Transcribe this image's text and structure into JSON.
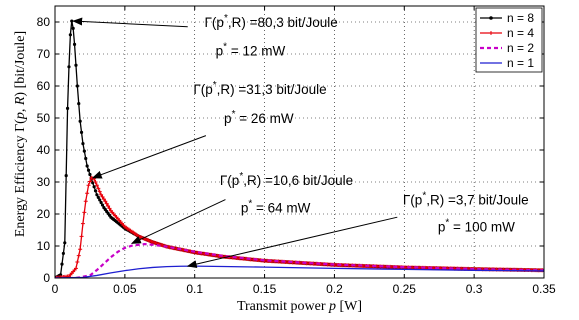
{
  "chart_data": {
    "type": "line",
    "xlabel_parts": [
      "Transmit power ",
      "p",
      " [W]"
    ],
    "ylabel_parts": [
      "Energy Efficiency Γ(",
      "p, R",
      ") [bit/Joule]"
    ],
    "xlim": [
      0,
      0.35
    ],
    "ylim": [
      0,
      85
    ],
    "xticks": [
      0,
      0.05,
      0.1,
      0.15,
      0.2,
      0.25,
      0.3,
      0.35
    ],
    "xtick_labels": [
      "0",
      "0.05",
      "0.1",
      "0.15",
      "0.2",
      "0.25",
      "0.3",
      "0.35"
    ],
    "yticks": [
      0,
      10,
      20,
      30,
      40,
      50,
      60,
      70,
      80
    ],
    "ytick_labels": [
      "0",
      "10",
      "20",
      "30",
      "40",
      "50",
      "60",
      "70",
      "80"
    ],
    "grid": true,
    "legend_position": "top-right",
    "series": [
      {
        "name": "n = 8",
        "color": "#000000",
        "marker": "dot",
        "dash": "solid",
        "x": [
          0,
          0.004,
          0.007,
          0.009,
          0.01,
          0.011,
          0.012,
          0.013,
          0.014,
          0.016,
          0.018,
          0.02,
          0.023,
          0.026,
          0.03,
          0.035,
          0.04,
          0.05,
          0.06,
          0.07,
          0.08,
          0.1,
          0.12,
          0.15,
          0.2,
          0.25,
          0.3,
          0.35
        ],
        "y": [
          0,
          1,
          11,
          53,
          66,
          76,
          80.3,
          78,
          73,
          60,
          49,
          42,
          35,
          31,
          26,
          22,
          19,
          15.5,
          13,
          11.2,
          9.8,
          8,
          6.7,
          5.4,
          4.1,
          3.3,
          2.8,
          2.4
        ]
      },
      {
        "name": "n = 4",
        "color": "#e8000b",
        "marker": "plus",
        "dash": "solid",
        "x": [
          0,
          0.01,
          0.015,
          0.018,
          0.02,
          0.022,
          0.024,
          0.026,
          0.028,
          0.03,
          0.033,
          0.036,
          0.04,
          0.05,
          0.06,
          0.07,
          0.08,
          0.1,
          0.12,
          0.15,
          0.2,
          0.25,
          0.3,
          0.35
        ],
        "y": [
          0,
          0.5,
          3,
          9,
          17,
          24,
          29,
          31.3,
          31,
          29,
          26,
          24,
          21,
          16,
          13,
          11.2,
          9.8,
          8,
          6.7,
          5.4,
          4.1,
          3.3,
          2.8,
          2.4
        ]
      },
      {
        "name": "n = 2",
        "color": "#c800c8",
        "marker": "none",
        "dash": "dashed",
        "x": [
          0,
          0.015,
          0.025,
          0.03,
          0.035,
          0.04,
          0.045,
          0.05,
          0.055,
          0.064,
          0.07,
          0.08,
          0.09,
          0.1,
          0.12,
          0.15,
          0.2,
          0.25,
          0.3,
          0.35
        ],
        "y": [
          0,
          0,
          0.8,
          2.5,
          4.5,
          6.5,
          8.2,
          9.4,
          10.1,
          10.6,
          10.4,
          9.8,
          9,
          8.2,
          6.9,
          5.5,
          4.2,
          3.4,
          2.8,
          2.4
        ]
      },
      {
        "name": "n = 1",
        "color": "#1f1fd0",
        "marker": "none",
        "dash": "solid",
        "x": [
          0,
          0.02,
          0.03,
          0.04,
          0.05,
          0.06,
          0.07,
          0.08,
          0.09,
          0.1,
          0.12,
          0.15,
          0.2,
          0.25,
          0.3,
          0.35
        ],
        "y": [
          0,
          0.2,
          0.8,
          1.6,
          2.3,
          2.9,
          3.3,
          3.55,
          3.68,
          3.7,
          3.6,
          3.4,
          3.0,
          2.7,
          2.4,
          2.2
        ]
      }
    ],
    "annotations": [
      {
        "line1": "Γ(p",
        "sup1": "*",
        "rest1": ",R) =80,3 bit/Joule",
        "line2": "p",
        "sup2": "*",
        "rest2": " = 12 mW",
        "text_at": [
          0.107,
          78.5
        ],
        "line2_at": [
          0.115,
          69.5
        ],
        "arrow_from": [
          0.095,
          78.5
        ],
        "arrow_to": [
          0.013,
          80.3
        ]
      },
      {
        "line1": "Γ(p",
        "sup1": "*",
        "rest1": ",R) =31,3 bit/Joule",
        "line2": "p",
        "sup2": "*",
        "rest2": " = 26 mW",
        "text_at": [
          0.099,
          57.5
        ],
        "line2_at": [
          0.121,
          48.5
        ],
        "arrow_from": [
          0.108,
          44.5
        ],
        "arrow_to": [
          0.027,
          31.3
        ]
      },
      {
        "line1": "Γ(p",
        "sup1": "*",
        "rest1": ",R) =10,6 bit/Joule",
        "line2": "p",
        "sup2": "*",
        "rest2": " = 64 mW",
        "text_at": [
          0.118,
          29
        ],
        "line2_at": [
          0.133,
          20.5
        ],
        "arrow_from": [
          0.122,
          24.5
        ],
        "arrow_to": [
          0.055,
          10.8
        ]
      },
      {
        "line1": "Γ(p",
        "sup1": "*",
        "rest1": ",R) =3,7 bit/Joule",
        "line2": "p",
        "sup2": "*",
        "rest2": " = 100 mW",
        "text_at": [
          0.249,
          23
        ],
        "line2_at": [
          0.274,
          14.5
        ],
        "arrow_from": [
          0.245,
          19
        ],
        "arrow_to": [
          0.095,
          3.7
        ]
      }
    ]
  }
}
